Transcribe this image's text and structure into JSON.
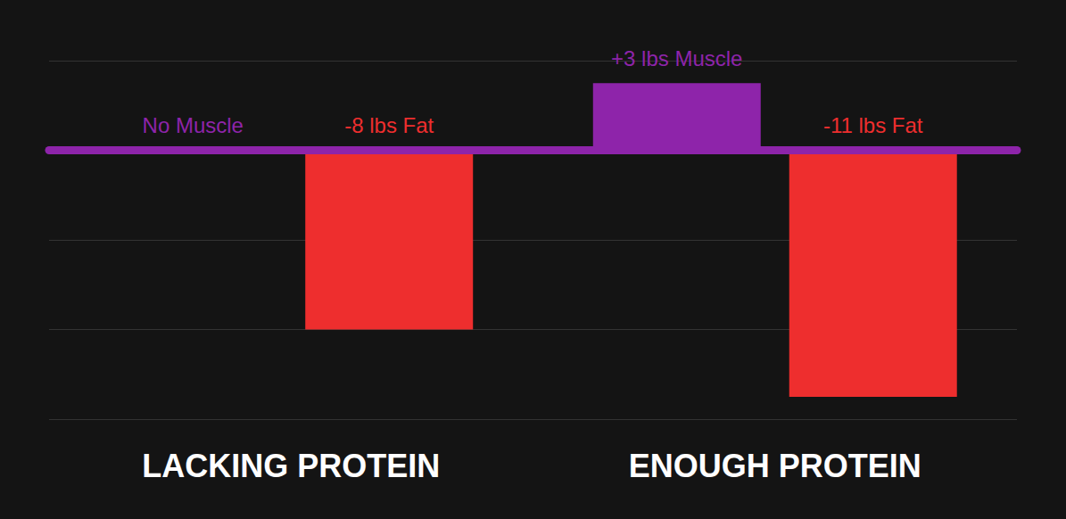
{
  "chart_data": {
    "type": "bar",
    "categories": [
      "LACKING PROTEIN",
      "ENOUGH PROTEIN"
    ],
    "series": [
      {
        "color": "#8e24aa",
        "values": [
          0,
          3
        ],
        "value_labels": [
          "No Muscle",
          "+3 lbs Muscle"
        ]
      },
      {
        "color": "#ee2e2e",
        "values": [
          -8,
          -11
        ],
        "value_labels": [
          "-8 lbs Fat",
          "-11 lbs Fat"
        ]
      }
    ],
    "ylim": [
      -12,
      4
    ],
    "yticks": [
      -12,
      -8,
      -4,
      0,
      4
    ],
    "grid": true,
    "data_labels": true,
    "tick_labels": "x"
  }
}
